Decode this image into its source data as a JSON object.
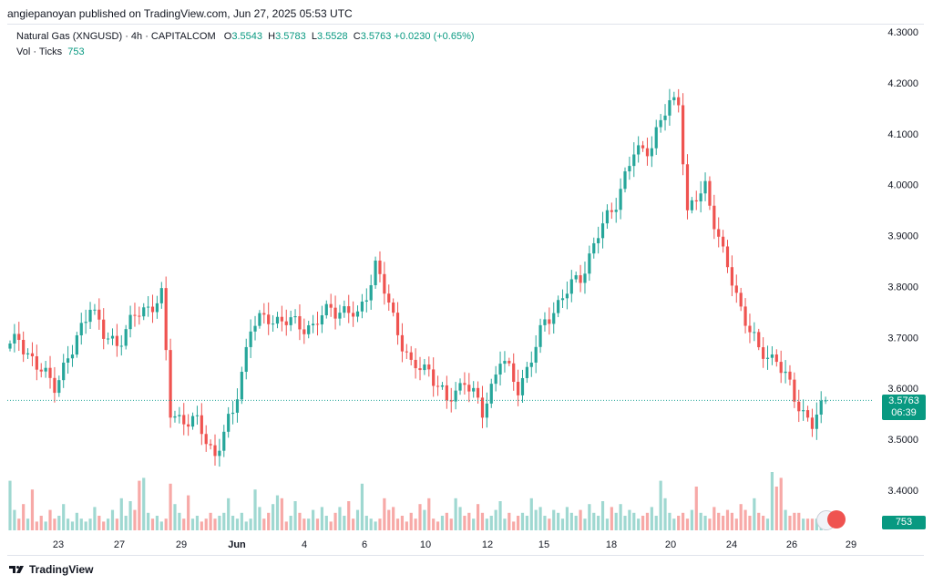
{
  "publisher_line": "angiepanoyan published on TradingView.com, Jun 27, 2025 05:53 UTC",
  "legend": {
    "symbol": "Natural Gas (XNGUSD) · 4h · CAPITALCOM",
    "o_label": "O",
    "o": "3.5543",
    "h_label": "H",
    "h": "3.5783",
    "l_label": "L",
    "l": "3.5528",
    "c_label": "C",
    "c": "3.5763",
    "change": "+0.0230 (+0.65%)",
    "vol_label": "Vol · Ticks",
    "vol_value": "753"
  },
  "price_tag": {
    "price": "3.5763",
    "countdown": "06:39"
  },
  "volume_tag": "753",
  "footer": {
    "brand": "TradingView"
  },
  "colors": {
    "up": "#26a69a",
    "down": "#ef5350",
    "up_vol": "#9fd8d1",
    "down_vol": "#f7a9a7",
    "tag": "#089981"
  },
  "chart_data": {
    "type": "candlestick",
    "y_ticks": [
      "4.3000",
      "4.2000",
      "4.1000",
      "4.0000",
      "3.9000",
      "3.8000",
      "3.7000",
      "3.6000",
      "3.5000",
      "3.4000"
    ],
    "ylim": [
      3.33,
      4.32
    ],
    "x_ticks": [
      "23",
      "27",
      "29",
      "Jun",
      "4",
      "6",
      "10",
      "12",
      "15",
      "18",
      "20",
      "24",
      "26",
      "29"
    ],
    "last_price": 3.5763,
    "anchors": [
      [
        0,
        3.68
      ],
      [
        2,
        3.7
      ],
      [
        6,
        3.64
      ],
      [
        10,
        3.61
      ],
      [
        14,
        3.67
      ],
      [
        18,
        3.77
      ],
      [
        21,
        3.7
      ],
      [
        24,
        3.69
      ],
      [
        28,
        3.74
      ],
      [
        34,
        3.78
      ],
      [
        36,
        3.55
      ],
      [
        42,
        3.53
      ],
      [
        46,
        3.47
      ],
      [
        50,
        3.55
      ],
      [
        54,
        3.72
      ],
      [
        58,
        3.74
      ],
      [
        62,
        3.73
      ],
      [
        68,
        3.72
      ],
      [
        72,
        3.76
      ],
      [
        78,
        3.74
      ],
      [
        82,
        3.84
      ],
      [
        86,
        3.74
      ],
      [
        90,
        3.64
      ],
      [
        94,
        3.64
      ],
      [
        98,
        3.57
      ],
      [
        102,
        3.62
      ],
      [
        106,
        3.55
      ],
      [
        110,
        3.66
      ],
      [
        114,
        3.6
      ],
      [
        118,
        3.68
      ],
      [
        120,
        3.73
      ],
      [
        124,
        3.78
      ],
      [
        128,
        3.82
      ],
      [
        132,
        3.9
      ],
      [
        136,
        3.97
      ],
      [
        140,
        4.06
      ],
      [
        144,
        4.08
      ],
      [
        148,
        4.16
      ],
      [
        150,
        4.17
      ],
      [
        152,
        3.94
      ],
      [
        156,
        4.0
      ],
      [
        160,
        3.86
      ],
      [
        164,
        3.76
      ],
      [
        168,
        3.67
      ],
      [
        172,
        3.66
      ],
      [
        176,
        3.58
      ],
      [
        180,
        3.53
      ],
      [
        183,
        3.57
      ]
    ],
    "volumes": [
      0.85,
      0.35,
      0.2,
      0.45,
      0.2,
      0.7,
      0.15,
      0.25,
      0.15,
      0.35,
      0.2,
      0.25,
      0.45,
      0.2,
      0.15,
      0.3,
      0.2,
      0.15,
      0.2,
      0.4,
      0.25,
      0.15,
      0.2,
      0.35,
      0.2,
      0.55,
      0.25,
      0.5,
      0.35,
      0.85,
      0.9,
      0.3,
      0.2,
      0.25,
      0.15,
      0.2,
      0.8,
      0.45,
      0.3,
      0.2,
      0.6,
      0.2,
      0.25,
      0.15,
      0.2,
      0.3,
      0.2,
      0.25,
      0.3,
      0.55,
      0.25,
      0.2,
      0.3,
      0.15,
      0.2,
      0.7,
      0.4,
      0.2,
      0.3,
      0.45,
      0.6,
      0.55,
      0.15,
      0.25,
      0.5,
      0.3,
      0.2,
      0.2,
      0.35,
      0.2,
      0.4,
      0.25,
      0.15,
      0.3,
      0.4,
      0.25,
      0.5,
      0.2,
      0.35,
      0.8,
      0.25,
      0.2,
      0.15,
      0.2,
      0.55,
      0.35,
      0.4,
      0.2,
      0.25,
      0.15,
      0.3,
      0.2,
      0.45,
      0.35,
      0.55,
      0.2,
      0.15,
      0.25,
      0.3,
      0.2,
      0.55,
      0.4,
      0.25,
      0.3,
      0.2,
      0.45,
      0.3,
      0.2,
      0.25,
      0.35,
      0.5,
      0.2,
      0.3,
      0.15,
      0.25,
      0.3,
      0.25,
      0.55,
      0.35,
      0.4,
      0.25,
      0.2,
      0.35,
      0.3,
      0.2,
      0.4,
      0.3,
      0.25,
      0.35,
      0.2,
      0.45,
      0.3,
      0.25,
      0.5,
      0.2,
      0.4,
      0.3,
      0.45,
      0.25,
      0.35,
      0.3,
      0.2,
      0.25,
      0.3,
      0.4,
      0.25,
      0.85,
      0.55,
      0.3,
      0.2,
      0.25,
      0.3,
      0.2,
      0.35,
      0.75,
      0.3,
      0.25,
      0.2,
      0.4,
      0.3,
      0.25,
      0.35,
      0.3,
      0.2,
      0.45,
      0.35,
      0.25,
      0.55,
      0.3,
      0.25,
      0.2,
      1.0,
      0.75,
      0.9,
      0.35,
      0.25,
      0.3,
      0.3
    ]
  }
}
